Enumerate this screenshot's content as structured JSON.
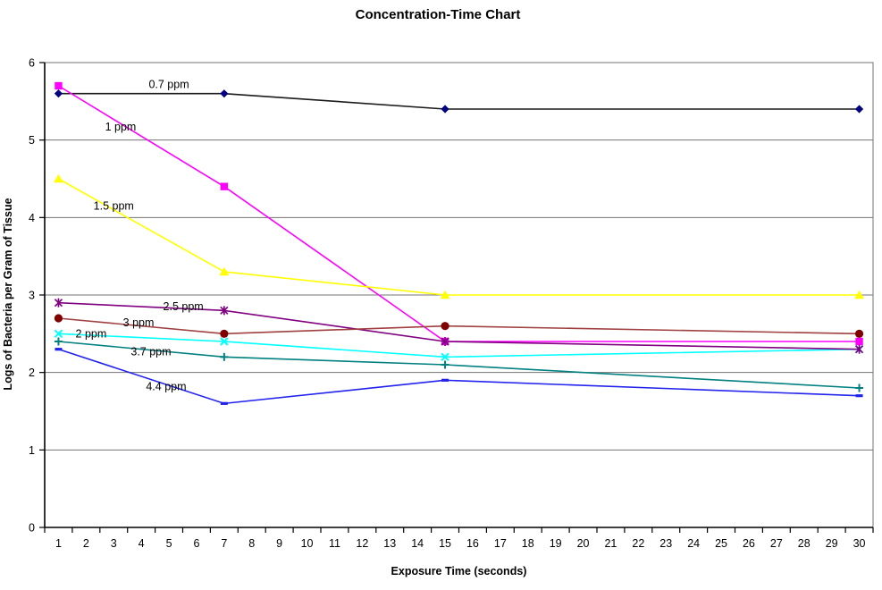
{
  "chart": {
    "title": "Concentration-Time Chart",
    "x_axis_title": "Exposure Time (seconds)",
    "y_axis_title": "Logs of Bacteria per Gram of Tissue"
  },
  "chart_data": {
    "type": "line",
    "title": "Concentration-Time Chart",
    "xlabel": "Exposure Time (seconds)",
    "ylabel": "Logs of Bacteria per Gram of Tissue",
    "x": [
      1,
      7,
      15,
      30
    ],
    "categories": [
      1,
      2,
      3,
      4,
      5,
      6,
      7,
      8,
      9,
      10,
      11,
      12,
      13,
      14,
      15,
      16,
      17,
      18,
      19,
      20,
      21,
      22,
      23,
      24,
      25,
      26,
      27,
      28,
      29,
      30
    ],
    "y_ticks": [
      0,
      1,
      2,
      3,
      4,
      5,
      6
    ],
    "ylim": [
      0,
      6
    ],
    "grid": "horizontal",
    "legend_position": "none",
    "colors": {
      "gridline": "#737373",
      "plot_border": "#737373",
      "axis_line": "#000000",
      "text": "#000000"
    },
    "series": [
      {
        "name": "0.7 ppm",
        "values": [
          5.6,
          5.6,
          5.4,
          5.4
        ],
        "line_color": "#1a1a1a",
        "marker_color": "#000080",
        "marker": "diamond"
      },
      {
        "name": "1 ppm",
        "values": [
          5.7,
          4.4,
          2.4,
          2.4
        ],
        "line_color": "#ff00ff",
        "marker_color": "#ff00ff",
        "marker": "square"
      },
      {
        "name": "1.5 ppm",
        "values": [
          4.5,
          3.3,
          3.0,
          3.0
        ],
        "line_color": "#ffff00",
        "marker_color": "#ffff00",
        "marker": "triangle"
      },
      {
        "name": "2 ppm",
        "values": [
          2.5,
          2.4,
          2.2,
          2.3
        ],
        "line_color": "#00ffff",
        "marker_color": "#00ffff",
        "marker": "x"
      },
      {
        "name": "2.5 ppm",
        "values": [
          2.9,
          2.8,
          2.4,
          2.3
        ],
        "line_color": "#800080",
        "marker_color": "#800080",
        "marker": "asterisk"
      },
      {
        "name": "3 ppm",
        "values": [
          2.7,
          2.5,
          2.6,
          2.5
        ],
        "line_color": "#a04040",
        "marker_color": "#800000",
        "marker": "circle"
      },
      {
        "name": "3.7 ppm",
        "values": [
          2.4,
          2.2,
          2.1,
          1.8
        ],
        "line_color": "#008080",
        "marker_color": "#008080",
        "marker": "plus"
      },
      {
        "name": "4.4 ppm",
        "values": [
          2.3,
          1.6,
          1.9,
          1.7
        ],
        "line_color": "#2222ee",
        "marker_color": "#2222ee",
        "marker": "dash"
      }
    ],
    "annotations": [
      {
        "label": "0.7 ppm",
        "x": 5.0,
        "y": 5.72
      },
      {
        "label": "1 ppm",
        "x": 3.25,
        "y": 5.17
      },
      {
        "label": "1.5 ppm",
        "x": 3.0,
        "y": 4.15
      },
      {
        "label": "2.5 ppm",
        "x": 5.52,
        "y": 2.85
      },
      {
        "label": "3 ppm",
        "x": 3.9,
        "y": 2.64
      },
      {
        "label": "2 ppm",
        "x": 2.18,
        "y": 2.5
      },
      {
        "label": "3.7 ppm",
        "x": 4.35,
        "y": 2.27
      },
      {
        "label": "4.4 ppm",
        "x": 4.9,
        "y": 1.82
      }
    ]
  }
}
